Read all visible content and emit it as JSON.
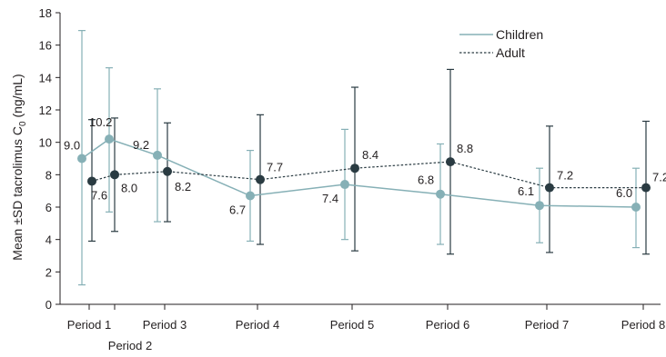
{
  "chart_data": {
    "type": "line",
    "title": "",
    "xlabel": "",
    "ylabel": "Mean ±SD tacrolimus C",
    "ylabel_subscript": "0",
    "ylabel_unit": " (ng/mL)",
    "ylim": [
      0,
      18
    ],
    "yticks": [
      0,
      2,
      4,
      6,
      8,
      10,
      12,
      14,
      16,
      18
    ],
    "categories": [
      "Period 1",
      "Period 2",
      "Period 3",
      "Period 4",
      "Period 5",
      "Period 6",
      "Period 7",
      "Period 8"
    ],
    "grid": false,
    "legend_position": "top-right",
    "series": [
      {
        "name": "Children",
        "color": "#86b0b6",
        "line_style": "solid",
        "values": [
          9.0,
          10.2,
          9.2,
          6.7,
          7.4,
          6.8,
          6.1,
          6.0
        ],
        "sd_upper": [
          16.9,
          14.6,
          13.3,
          9.5,
          10.8,
          9.9,
          8.4,
          8.4
        ],
        "sd_lower": [
          1.2,
          5.7,
          5.1,
          3.9,
          4.0,
          3.7,
          3.8,
          3.5
        ],
        "labels": [
          "9.0",
          "10.2",
          "9.2",
          "6.7",
          "7.4",
          "6.8",
          "6.1",
          "6.0"
        ]
      },
      {
        "name": "Adult",
        "color": "#2a3b42",
        "line_style": "dotted",
        "values": [
          7.6,
          8.0,
          8.2,
          7.7,
          8.4,
          8.8,
          7.2,
          7.2
        ],
        "sd_upper": [
          11.4,
          11.5,
          11.2,
          11.7,
          13.4,
          14.5,
          11.0,
          11.3
        ],
        "sd_lower": [
          3.9,
          4.5,
          5.1,
          3.7,
          3.3,
          3.1,
          3.2,
          3.1
        ],
        "labels": [
          "7.6",
          "8.0",
          "8.2",
          "7.7",
          "8.4",
          "8.8",
          "7.2",
          "7.2"
        ]
      }
    ]
  }
}
